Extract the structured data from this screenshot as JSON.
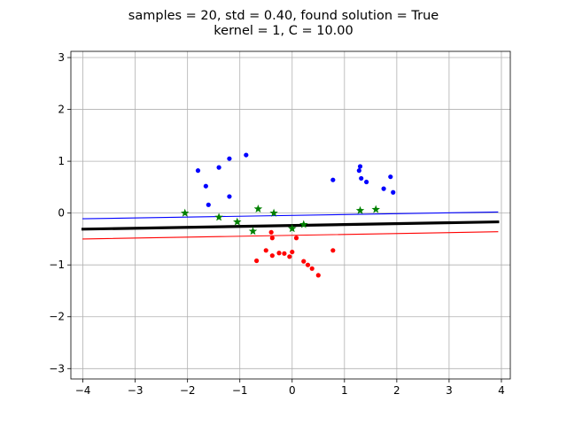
{
  "chart_data": {
    "type": "scatter",
    "title_line1": "samples = 20, std = 0.40, found solution = True",
    "title_line2": "kernel = 1, C = 10.00",
    "xlim": [
      -4.23,
      4.17
    ],
    "ylim": [
      -3.2,
      3.12
    ],
    "grid": true,
    "x_ticks": [
      -4,
      -3,
      -2,
      -1,
      0,
      1,
      2,
      3,
      4
    ],
    "y_ticks": [
      -3,
      -2,
      -1,
      0,
      1,
      2,
      3
    ],
    "x_tick_labels": [
      "−4",
      "−3",
      "−2",
      "−1",
      "0",
      "1",
      "2",
      "3",
      "4"
    ],
    "y_tick_labels": [
      "−3",
      "−2",
      "−1",
      "0",
      "1",
      "2",
      "3"
    ],
    "colors": {
      "class_pos": "#0000ff",
      "class_neg": "#ff0000",
      "support": "#008000",
      "boundary": "#000000"
    },
    "series": [
      {
        "role": "class_pos",
        "points": [
          [
            -1.8,
            0.82
          ],
          [
            -1.4,
            0.88
          ],
          [
            -1.2,
            1.05
          ],
          [
            -0.88,
            1.12
          ],
          [
            -1.65,
            0.52
          ],
          [
            -1.2,
            0.32
          ],
          [
            -1.6,
            0.16
          ],
          [
            0.78,
            0.64
          ],
          [
            1.28,
            0.82
          ],
          [
            1.3,
            0.9
          ],
          [
            1.32,
            0.67
          ],
          [
            1.42,
            0.6
          ],
          [
            1.75,
            0.47
          ],
          [
            1.88,
            0.7
          ],
          [
            1.93,
            0.4
          ]
        ]
      },
      {
        "role": "class_neg",
        "points": [
          [
            -0.4,
            -0.37
          ],
          [
            -0.38,
            -0.48
          ],
          [
            0.08,
            -0.48
          ],
          [
            -0.68,
            -0.92
          ],
          [
            -0.5,
            -0.72
          ],
          [
            -0.38,
            -0.82
          ],
          [
            -0.25,
            -0.77
          ],
          [
            -0.15,
            -0.78
          ],
          [
            -0.05,
            -0.84
          ],
          [
            0.0,
            -0.75
          ],
          [
            0.22,
            -0.93
          ],
          [
            0.3,
            -1.0
          ],
          [
            0.38,
            -1.07
          ],
          [
            0.5,
            -1.2
          ],
          [
            0.78,
            -0.72
          ]
        ]
      },
      {
        "role": "support",
        "points": [
          [
            -2.05,
            0.0
          ],
          [
            -1.4,
            -0.08
          ],
          [
            -1.05,
            -0.17
          ],
          [
            -0.65,
            0.08
          ],
          [
            -0.75,
            -0.35
          ],
          [
            -0.35,
            0.0
          ],
          [
            0.0,
            -0.3
          ],
          [
            0.22,
            -0.22
          ],
          [
            1.3,
            0.05
          ],
          [
            1.6,
            0.07
          ]
        ]
      }
    ],
    "lines": [
      {
        "role": "margin_pos",
        "x": [
          -4,
          3.93
        ],
        "y": [
          -0.11,
          0.02
        ]
      },
      {
        "role": "boundary",
        "x": [
          -4,
          3.93
        ],
        "y": [
          -0.31,
          -0.17
        ]
      },
      {
        "role": "margin_neg",
        "x": [
          -4,
          3.93
        ],
        "y": [
          -0.5,
          -0.36
        ]
      }
    ]
  }
}
